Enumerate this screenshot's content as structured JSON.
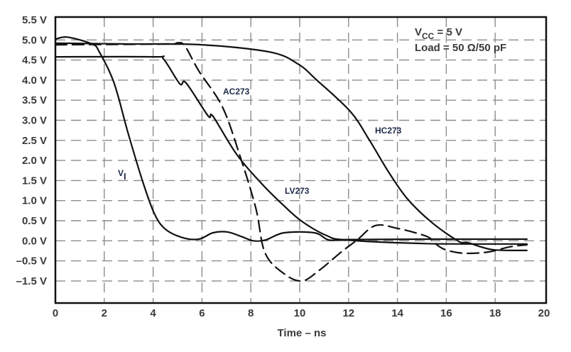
{
  "chart_data": {
    "type": "line",
    "title": "",
    "xlabel": "Time – ns",
    "ylabel": "",
    "xlim": [
      0,
      20
    ],
    "x_ticks": [
      "0",
      "2",
      "4",
      "6",
      "8",
      "10",
      "12",
      "14",
      "16",
      "18",
      "20"
    ],
    "y_ticks": [
      "5.5 V",
      "5.0 V",
      "4.5 V",
      "4.0 V",
      "3.5 V",
      "3.0 V",
      "2.5 V",
      "2.0 V",
      "1.5 V",
      "1.0 V",
      "0.5 V",
      "0.0 V",
      "–0.5 V",
      "–1.5 V"
    ],
    "y_tick_values": [
      5.5,
      5.0,
      4.5,
      4.0,
      3.5,
      3.0,
      2.5,
      2.0,
      1.5,
      1.0,
      0.5,
      0.0,
      -0.5,
      -1.5
    ],
    "grid": true,
    "annotation": {
      "vcc_prefix": "V",
      "vcc_sub": "CC",
      "vcc_rest": " = 5 V",
      "load": "Load = 50 Ω/50 pF"
    },
    "series": [
      {
        "name": "VI",
        "label_main": "V",
        "label_sub": "I",
        "style": "solid",
        "x": [
          0,
          0.5,
          1.5,
          1.8,
          2.4,
          2.97,
          3.55,
          4.04,
          4.5,
          5.2,
          5.87,
          6.45,
          7.03,
          7.6,
          8.1,
          8.6,
          9.36,
          10.6,
          11.2,
          12,
          15,
          19.3
        ],
        "y": [
          5.02,
          5.07,
          4.9,
          4.7,
          3.93,
          2.69,
          1.52,
          0.69,
          0.29,
          0.08,
          0.04,
          0.2,
          0.22,
          0.11,
          0.0,
          0.02,
          0.2,
          0.2,
          0.02,
          0.03,
          0.04,
          0.04
        ]
      },
      {
        "name": "LV273",
        "style": "solid",
        "x": [
          0,
          4.04,
          4.42,
          5.09,
          5.35,
          6.25,
          6.45,
          7.41,
          8.4,
          9.36,
          10.1,
          11.1,
          11.9,
          15.2,
          19.3
        ],
        "y": [
          4.58,
          4.58,
          4.53,
          3.91,
          3.93,
          3.11,
          3.1,
          2.16,
          1.45,
          0.87,
          0.48,
          0.13,
          0.02,
          -0.07,
          -0.08
        ]
      },
      {
        "name": "AC273",
        "style": "dashed",
        "x": [
          0,
          4.5,
          5.0,
          5.3,
          5.87,
          6.83,
          7.53,
          8.2,
          8.58,
          9.36,
          10.1,
          10.8,
          11.7,
          12.35,
          13.1,
          14.0,
          15.2,
          15.55,
          15.96,
          16.7,
          17.7,
          18.6,
          19.3
        ],
        "y": [
          4.88,
          4.9,
          4.93,
          4.85,
          4.23,
          3.34,
          2.16,
          0.82,
          -0.3,
          -1.14,
          -1.52,
          -0.97,
          -0.28,
          0.02,
          0.38,
          0.31,
          0.11,
          -0.07,
          -0.22,
          -0.31,
          -0.28,
          -0.15,
          -0.1
        ]
      },
      {
        "name": "HC273",
        "style": "solid",
        "x": [
          0,
          3,
          6,
          8.78,
          9.94,
          10.7,
          12.07,
          12.85,
          13.6,
          14.4,
          15.4,
          16.5,
          16.9,
          17.9,
          19.3
        ],
        "y": [
          4.92,
          4.9,
          4.88,
          4.7,
          4.4,
          4.0,
          3.22,
          2.51,
          1.75,
          1.05,
          0.46,
          -0.01,
          -0.05,
          -0.22,
          -0.24
        ]
      }
    ]
  }
}
